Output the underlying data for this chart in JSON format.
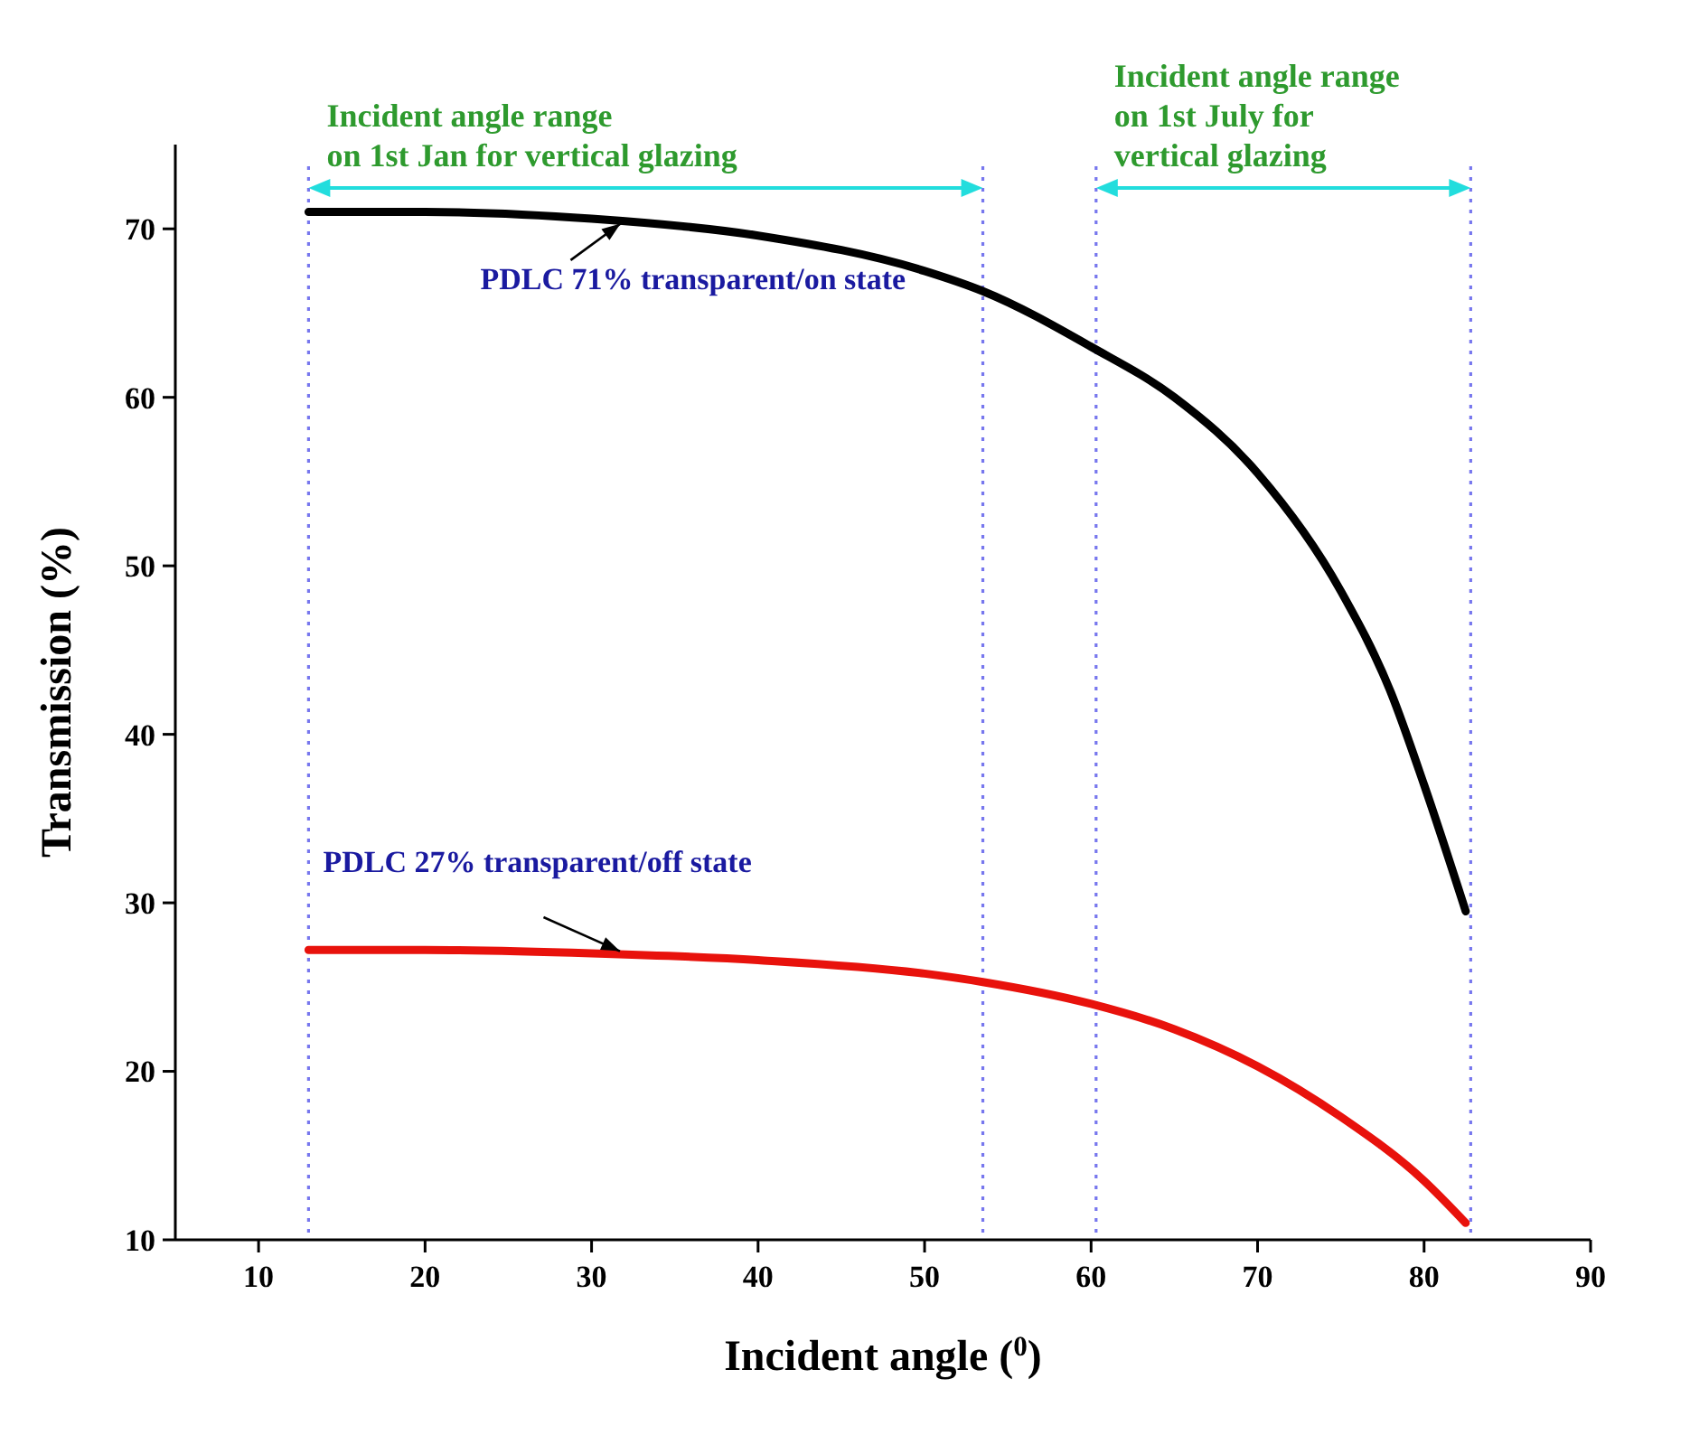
{
  "chart_data": {
    "type": "line",
    "xlabel": "Incident angle ($^{0}$)",
    "ylabel": "Transmission (%)",
    "xlim": [
      5,
      90
    ],
    "xticks": [
      10,
      20,
      30,
      40,
      50,
      60,
      70,
      80,
      90
    ],
    "ylim": [
      10,
      75
    ],
    "yticks": [
      10,
      20,
      30,
      40,
      50,
      60,
      70
    ],
    "grid": false,
    "marker": "none",
    "line_style": "solid",
    "series": [
      {
        "color": "#000000",
        "x": [
          13,
          20,
          30,
          40,
          50,
          53.5,
          60,
          65,
          70,
          75,
          78,
          80,
          82.5
        ],
        "values": [
          71,
          71,
          70.6,
          69.6,
          67.5,
          66.3,
          63,
          60,
          55.5,
          48.5,
          42.5,
          37,
          29.5
        ]
      },
      {
        "color": "#e8120c",
        "x": [
          13,
          20,
          30,
          40,
          50,
          53.5,
          60,
          65,
          70,
          75,
          80,
          82.5
        ],
        "values": [
          27.2,
          27.2,
          27,
          26.6,
          25.8,
          25.3,
          24,
          22.5,
          20.3,
          17.3,
          13.5,
          11
        ]
      }
    ],
    "ref_lines": [
      {
        "axis": "x",
        "value": 13,
        "color": "#7777ee",
        "line_style": "dotted"
      },
      {
        "axis": "x",
        "value": 53.5,
        "color": "#7777ee",
        "line_style": "dotted"
      },
      {
        "axis": "x",
        "value": 60.3,
        "color": "#7777ee",
        "line_style": "dotted"
      },
      {
        "axis": "x",
        "value": 82.8,
        "color": "#7777ee",
        "line_style": "dotted"
      }
    ],
    "annotations": [
      "Incident angle range\non 1st Jan for vertical glazing",
      "Incident angle range\non 1st July for\nvertical glazing",
      {
        "text": "PDLC 71% transparent/on state",
        "x": 32,
        "y": 70.5
      },
      {
        "text": "PDLC 27% transparent/off state",
        "x": 32,
        "y": 27
      }
    ]
  }
}
